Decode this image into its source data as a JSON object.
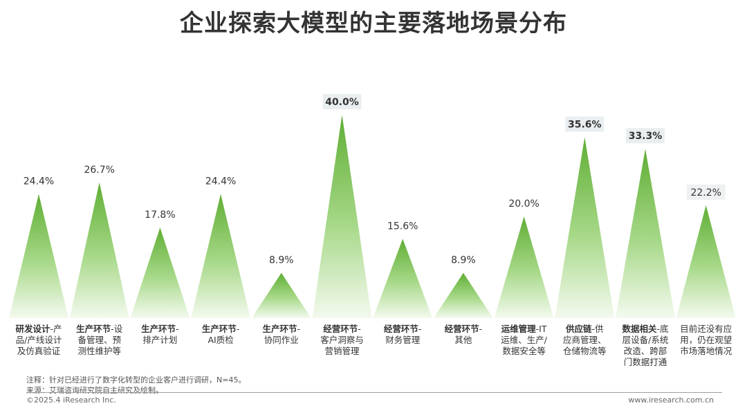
{
  "title": "企业探索大模型的主要落地场景分布",
  "chart_data": {
    "type": "bar",
    "title": "企业探索大模型的主要落地场景分布",
    "unit": "%",
    "ylim": [
      0,
      45
    ],
    "categories": [
      [
        "研发设计",
        "-产",
        "品/产线设计",
        "及仿真验证"
      ],
      [
        "生产环节",
        "-设",
        "备管理、预",
        "测性维护等"
      ],
      [
        "生产环节",
        "-",
        "排产计划"
      ],
      [
        "生产环节",
        "-",
        "AI质检"
      ],
      [
        "生产环节",
        "-",
        "协同作业"
      ],
      [
        "经营环节",
        "-",
        "客户洞察与",
        "营销管理"
      ],
      [
        "经营环节",
        "-",
        "财务管理"
      ],
      [
        "经营环节",
        "-",
        "其他"
      ],
      [
        "运维管理",
        "-IT",
        "运维、生产/",
        "数据安全等"
      ],
      [
        "供应链",
        "-供",
        "应商管理、",
        "仓储物流等"
      ],
      [
        "数据相关",
        "-底",
        "层设备/系统",
        "改造、跨部",
        "门数据打通"
      ],
      [
        "",
        "目前还没有应",
        "用，仍在观望",
        "市场落地情况"
      ]
    ],
    "values": [
      24.4,
      26.7,
      17.8,
      24.4,
      8.9,
      40.0,
      15.6,
      8.9,
      20.0,
      35.6,
      33.3,
      22.2
    ],
    "value_labels": [
      "24.4%",
      "26.7%",
      "17.8%",
      "24.4%",
      "8.9%",
      "40.0%",
      "15.6%",
      "8.9%",
      "20.0%",
      "35.6%",
      "33.3%",
      "22.2%"
    ],
    "highlighted": [
      5,
      9,
      10,
      11
    ],
    "colors": {
      "peak": "#6ab23e",
      "base": "#f3f9ee",
      "highlight_box": "#e9eef0",
      "soft_box": "#eef0f1"
    }
  },
  "footer": {
    "note": "注释：针对已经进行了数字化转型的企业客户进行调研，N=45。",
    "source": "来源：艾瑞咨询研究院自主研究及绘制。",
    "copyright": "©2025.4 iResearch Inc.",
    "website": "www.iresearch.com.cn"
  }
}
